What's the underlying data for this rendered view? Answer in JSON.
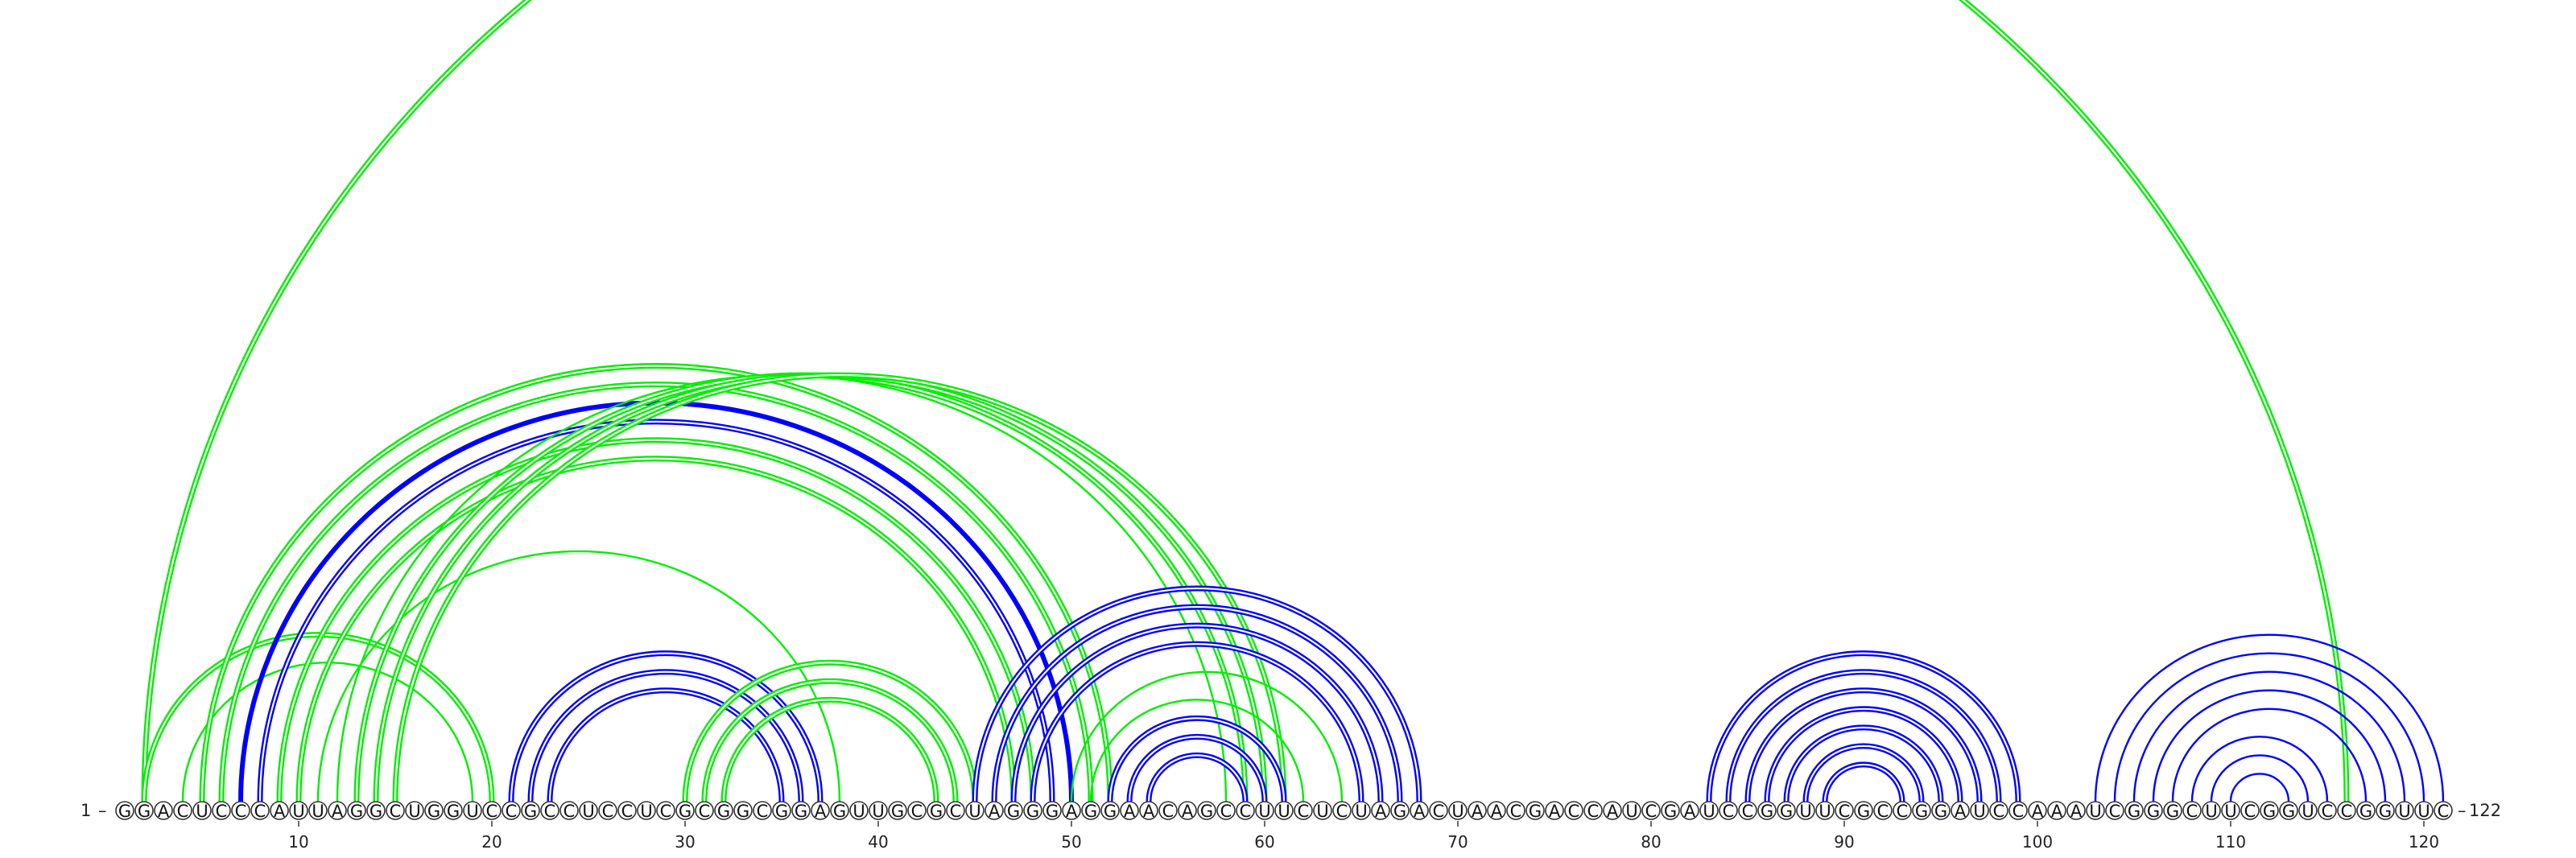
{
  "sequence": "GGACUCCCAUUAGGCUGGUCCGCCUCCUCGCGGCGGAGUUGCGCUAGGGAGGAACAGCCUUCUCUAGACUAACGACCAUCGAUCCGGUUCGCCGGAUCCAAAUCGGGCUUCGGUCCGGUUC",
  "start_label": "1",
  "end_label": "122",
  "tick_labels": [
    "10",
    "20",
    "30",
    "40",
    "50",
    "60",
    "70",
    "80",
    "90",
    "100",
    "110",
    "120"
  ],
  "colors": {
    "blue_pair": "#0000ff",
    "green_pair": "#00ee00",
    "nucleotide_outline": "#333333"
  },
  "arcs": [
    {
      "i": 2,
      "j": 116,
      "color": "green",
      "style": "double"
    },
    {
      "i": 2,
      "j": 20,
      "color": "green",
      "style": "double"
    },
    {
      "i": 4,
      "j": 19,
      "color": "green",
      "style": "single"
    },
    {
      "i": 5,
      "j": 52,
      "color": "green",
      "style": "double"
    },
    {
      "i": 6,
      "j": 51,
      "color": "green",
      "style": "double"
    },
    {
      "i": 7,
      "j": 50,
      "color": "blue",
      "style": "bold"
    },
    {
      "i": 8,
      "j": 49,
      "color": "blue",
      "style": "double"
    },
    {
      "i": 9,
      "j": 48,
      "color": "green",
      "style": "double"
    },
    {
      "i": 10,
      "j": 47,
      "color": "green",
      "style": "double"
    },
    {
      "i": 11,
      "j": 38,
      "color": "green",
      "style": "single"
    },
    {
      "i": 12,
      "j": 58,
      "color": "green",
      "style": "single"
    },
    {
      "i": 13,
      "j": 59,
      "color": "green",
      "style": "double"
    },
    {
      "i": 14,
      "j": 60,
      "color": "green",
      "style": "double"
    },
    {
      "i": 15,
      "j": 61,
      "color": "green",
      "style": "double"
    },
    {
      "i": 21,
      "j": 37,
      "color": "blue",
      "style": "double"
    },
    {
      "i": 22,
      "j": 36,
      "color": "blue",
      "style": "double"
    },
    {
      "i": 23,
      "j": 35,
      "color": "blue",
      "style": "double"
    },
    {
      "i": 30,
      "j": 45,
      "color": "green",
      "style": "double"
    },
    {
      "i": 31,
      "j": 44,
      "color": "green",
      "style": "double"
    },
    {
      "i": 32,
      "j": 43,
      "color": "green",
      "style": "double"
    },
    {
      "i": 45,
      "j": 68,
      "color": "blue",
      "style": "double"
    },
    {
      "i": 46,
      "j": 67,
      "color": "blue",
      "style": "double"
    },
    {
      "i": 47,
      "j": 66,
      "color": "blue",
      "style": "double"
    },
    {
      "i": 48,
      "j": 65,
      "color": "blue",
      "style": "double"
    },
    {
      "i": 50,
      "j": 64,
      "color": "green",
      "style": "single"
    },
    {
      "i": 51,
      "j": 62,
      "color": "green",
      "style": "single"
    },
    {
      "i": 52,
      "j": 61,
      "color": "blue",
      "style": "double"
    },
    {
      "i": 53,
      "j": 60,
      "color": "blue",
      "style": "double"
    },
    {
      "i": 54,
      "j": 59,
      "color": "blue",
      "style": "double"
    },
    {
      "i": 83,
      "j": 99,
      "color": "blue",
      "style": "double"
    },
    {
      "i": 84,
      "j": 98,
      "color": "blue",
      "style": "double"
    },
    {
      "i": 85,
      "j": 97,
      "color": "blue",
      "style": "double"
    },
    {
      "i": 86,
      "j": 96,
      "color": "blue",
      "style": "double"
    },
    {
      "i": 87,
      "j": 95,
      "color": "blue",
      "style": "double"
    },
    {
      "i": 88,
      "j": 94,
      "color": "blue",
      "style": "double"
    },
    {
      "i": 89,
      "j": 93,
      "color": "blue",
      "style": "double"
    },
    {
      "i": 103,
      "j": 121,
      "color": "blue",
      "style": "single"
    },
    {
      "i": 104,
      "j": 120,
      "color": "blue",
      "style": "single"
    },
    {
      "i": 105,
      "j": 119,
      "color": "blue",
      "style": "single"
    },
    {
      "i": 106,
      "j": 118,
      "color": "blue",
      "style": "single"
    },
    {
      "i": 107,
      "j": 117,
      "color": "blue",
      "style": "single"
    },
    {
      "i": 108,
      "j": 115,
      "color": "blue",
      "style": "single"
    },
    {
      "i": 109,
      "j": 114,
      "color": "blue",
      "style": "single"
    },
    {
      "i": 110,
      "j": 113,
      "color": "blue",
      "style": "single"
    }
  ]
}
